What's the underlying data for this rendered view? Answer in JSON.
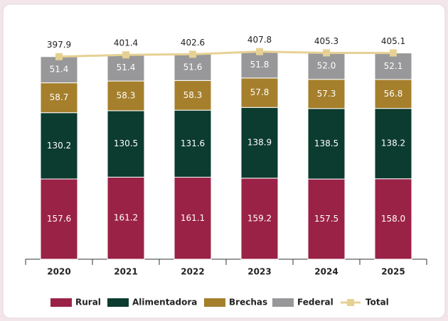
{
  "chart_data": {
    "type": "bar",
    "stacked": true,
    "categories": [
      "2020",
      "2021",
      "2022",
      "2023",
      "2024",
      "2025"
    ],
    "ylim": [
      0,
      450
    ],
    "series": [
      {
        "name": "Rural",
        "color": "#9b2247",
        "values": [
          157.6,
          161.2,
          161.1,
          159.2,
          157.5,
          158.0
        ],
        "value_labels": [
          "157.6",
          "161.2",
          "161.1",
          "159.2",
          "157.5",
          "158.0"
        ]
      },
      {
        "name": "Alimentadora",
        "color": "#0c3b2f",
        "values": [
          130.2,
          130.5,
          131.6,
          138.9,
          138.5,
          138.2
        ],
        "value_labels": [
          "130.2",
          "130.5",
          "131.6",
          "138.9",
          "138.5",
          "138.2"
        ]
      },
      {
        "name": "Brechas",
        "color": "#a57f2c",
        "values": [
          58.7,
          58.3,
          58.3,
          57.8,
          57.3,
          56.8
        ],
        "value_labels": [
          "58.7",
          "58.3",
          "58.3",
          "57.8",
          "57.3",
          "56.8"
        ]
      },
      {
        "name": "Federal",
        "color": "#98989a",
        "values": [
          51.4,
          51.4,
          51.6,
          51.8,
          52.0,
          52.1
        ],
        "value_labels": [
          "51.4",
          "51.4",
          "51.6",
          "51.8",
          "52.0",
          "52.1"
        ]
      },
      {
        "name": "Total",
        "type": "line",
        "color": "#e6d194",
        "values": [
          397.9,
          401.4,
          402.6,
          407.8,
          405.3,
          405.1
        ],
        "value_labels": [
          "397.9",
          "401.4",
          "402.6",
          "407.8",
          "405.3",
          "405.1"
        ]
      }
    ],
    "legend": "bottom"
  }
}
